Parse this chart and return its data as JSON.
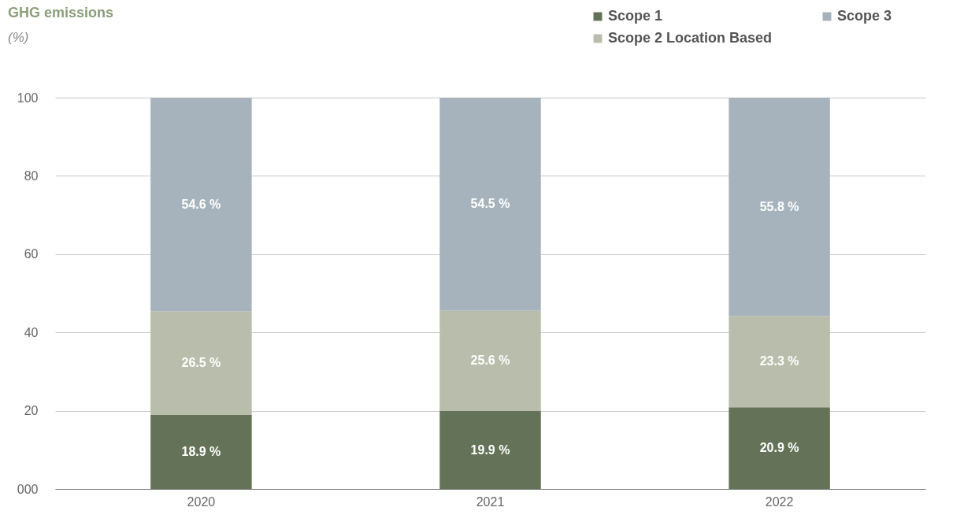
{
  "chart_data": {
    "type": "bar",
    "title": "GHG emissions",
    "subtitle": "(%)",
    "stacked": true,
    "categories": [
      "2020",
      "2021",
      "2022"
    ],
    "series": [
      {
        "name": "Scope 1",
        "color": "#647358",
        "values": [
          18.9,
          19.9,
          20.9
        ],
        "value_labels": [
          "18.9 %",
          "19.9 %",
          "20.9 %"
        ]
      },
      {
        "name": "Scope 2 Location Based",
        "color": "#b9bdab",
        "values": [
          26.5,
          25.6,
          23.3
        ],
        "value_labels": [
          "26.5 %",
          "25.6 %",
          "23.3 %"
        ]
      },
      {
        "name": "Scope 3",
        "color": "#a7b3bc",
        "values": [
          54.6,
          54.5,
          55.8
        ],
        "value_labels": [
          "54.6 %",
          "54.5 %",
          "55.8 %"
        ]
      }
    ],
    "ylim": [
      0,
      100
    ],
    "yticks": [
      {
        "value": 0,
        "label": "000"
      },
      20,
      40,
      60,
      80,
      100
    ],
    "grid": "y",
    "legend": "top right"
  }
}
